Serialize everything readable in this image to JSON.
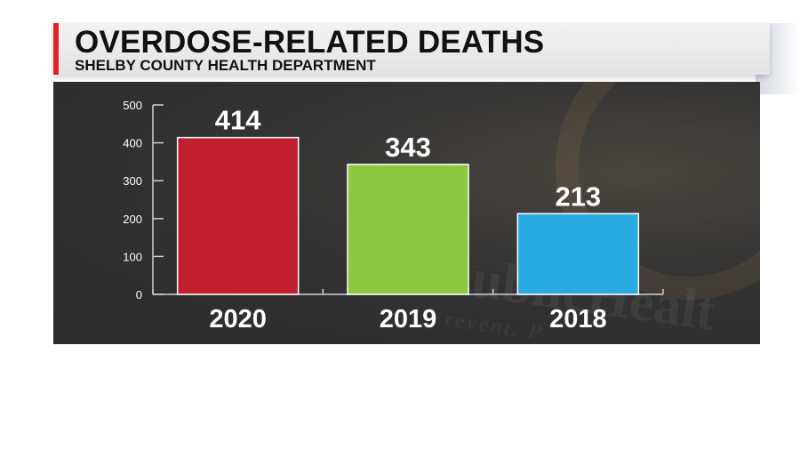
{
  "header": {
    "title": "OVERDOSE-RELATED DEATHS",
    "subtitle": "SHELBY COUNTY HEALTH DEPARTMENT"
  },
  "watermark": {
    "text": "ublicHealt",
    "tagline": "revent. P"
  },
  "colors": {
    "accent": "#e32227",
    "panel": "#2f2f2f"
  },
  "chart_data": {
    "type": "bar",
    "categories": [
      "2020",
      "2019",
      "2018"
    ],
    "values": [
      414,
      343,
      213
    ],
    "bar_colors": [
      "#c0202e",
      "#8dc63f",
      "#29abe2"
    ],
    "title": "OVERDOSE-RELATED DEATHS",
    "subtitle": "SHELBY COUNTY HEALTH DEPARTMENT",
    "xlabel": "",
    "ylabel": "",
    "ylim": [
      0,
      500
    ],
    "yticks": [
      0,
      100,
      200,
      300,
      400,
      500
    ],
    "grid": false,
    "legend": "none"
  }
}
